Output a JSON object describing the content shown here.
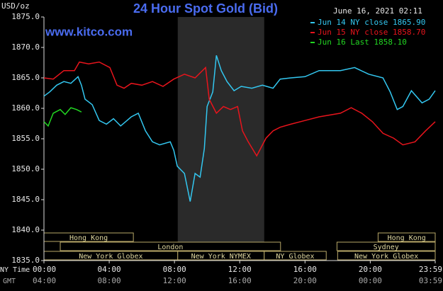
{
  "chart_data": {
    "type": "line",
    "title": "24 Hour Spot Gold (Bid)",
    "subtitle": "www.kitco.com",
    "timestamp": "June 16, 2021 02:11",
    "y_label": "USD/oz",
    "x_label": "NY Time",
    "x2_label": "GMT",
    "xlim": [
      0,
      23.98
    ],
    "xticks": [
      {
        "value": 0,
        "label": "00:00"
      },
      {
        "value": 4,
        "label": "04:00"
      },
      {
        "value": 8,
        "label": "08:00"
      },
      {
        "value": 12,
        "label": "12:00"
      },
      {
        "value": 16,
        "label": "16:00"
      },
      {
        "value": 20,
        "label": "20:00"
      },
      {
        "value": 23.98,
        "label": "23:59"
      }
    ],
    "x2_tick_labels": [
      "04:00",
      "08:00",
      "12:00",
      "16:00",
      "20:00",
      "00:00",
      "03:59"
    ],
    "ylim": [
      1835,
      1875
    ],
    "yticks": [
      {
        "value": 1835,
        "label": "1835.0"
      },
      {
        "value": 1840,
        "label": "1840.0"
      },
      {
        "value": 1845,
        "label": "1845.0"
      },
      {
        "value": 1850,
        "label": "1850.0"
      },
      {
        "value": 1855,
        "label": "1855.0"
      },
      {
        "value": 1860,
        "label": "1860.0"
      },
      {
        "value": 1865,
        "label": "1865.0"
      },
      {
        "value": 1870,
        "label": "1870.0"
      },
      {
        "value": 1875,
        "label": "1875.0"
      }
    ],
    "grid": false,
    "legend": "top-right",
    "shade_x": [
      8.2,
      13.5
    ],
    "sessions": [
      {
        "label": "Hong Kong",
        "row": 0,
        "start": 0,
        "end": 5.48
      },
      {
        "label": "Hong Kong",
        "row": 0,
        "start": 20.48,
        "end": 23.98
      },
      {
        "label": "London",
        "row": 1,
        "start": 1.0,
        "end": 14.5
      },
      {
        "label": "Sydney",
        "row": 1,
        "start": 17.96,
        "end": 23.98
      },
      {
        "label": "New York Globex",
        "row": 2,
        "start": 0,
        "end": 8.2
      },
      {
        "label": "New York NYMEX",
        "row": 2,
        "start": 8.2,
        "end": 13.5
      },
      {
        "label": "NY Globex",
        "row": 2,
        "start": 13.5,
        "end": 17.3
      },
      {
        "label": "New York Globex",
        "row": 2,
        "start": 18.0,
        "end": 23.98
      }
    ],
    "series": [
      {
        "name": "Jun 14 NY close 1865.90",
        "color": "#33c7f0",
        "x": [
          0,
          0.35,
          0.78,
          1.22,
          1.65,
          2.09,
          2.3,
          2.52,
          2.96,
          3.39,
          3.83,
          4.26,
          4.7,
          5.35,
          5.78,
          6.22,
          6.65,
          7.09,
          7.74,
          7.96,
          8.17,
          8.61,
          8.96,
          9.26,
          9.57,
          9.83,
          10.0,
          10.35,
          10.57,
          10.87,
          11.22,
          11.65,
          12.09,
          12.74,
          13.39,
          14.04,
          14.48,
          15.13,
          16.0,
          16.87,
          18.17,
          19.04,
          19.91,
          20.78,
          21.22,
          21.65,
          22.0,
          22.52,
          23.17,
          23.61,
          23.98
        ],
        "values": [
          1862.0,
          1862.7,
          1863.8,
          1864.4,
          1864.1,
          1865.2,
          1863.8,
          1861.5,
          1860.6,
          1858.0,
          1857.4,
          1858.3,
          1857.1,
          1858.6,
          1859.2,
          1856.3,
          1854.5,
          1854.0,
          1854.5,
          1853.1,
          1850.5,
          1849.3,
          1844.7,
          1849.3,
          1848.7,
          1853.4,
          1860.3,
          1862.7,
          1868.7,
          1866.2,
          1864.4,
          1862.9,
          1863.6,
          1863.3,
          1863.8,
          1863.3,
          1864.8,
          1865.0,
          1865.2,
          1866.2,
          1866.2,
          1866.7,
          1865.6,
          1865.0,
          1862.7,
          1859.8,
          1860.3,
          1862.9,
          1860.9,
          1861.5,
          1862.9
        ]
      },
      {
        "name": "Jun 15 NY close 1858.70",
        "color": "#e8141c",
        "x": [
          0,
          0.57,
          1.22,
          1.87,
          2.17,
          2.74,
          3.39,
          4.04,
          4.48,
          4.91,
          5.35,
          6.0,
          6.65,
          7.3,
          7.96,
          8.61,
          9.26,
          9.91,
          10.13,
          10.57,
          11.0,
          11.43,
          11.87,
          12.17,
          12.52,
          13.04,
          13.61,
          14.04,
          14.48,
          15.13,
          16.0,
          16.87,
          18.17,
          18.83,
          19.48,
          20.13,
          20.78,
          21.43,
          22.0,
          22.74,
          23.39,
          23.98
        ],
        "values": [
          1865.0,
          1864.8,
          1866.2,
          1866.2,
          1867.6,
          1867.3,
          1867.6,
          1866.7,
          1863.8,
          1863.3,
          1864.1,
          1863.8,
          1864.4,
          1863.6,
          1864.8,
          1865.6,
          1865.0,
          1866.7,
          1861.5,
          1859.2,
          1860.3,
          1859.8,
          1860.3,
          1856.3,
          1854.5,
          1852.2,
          1855.1,
          1856.3,
          1856.9,
          1857.4,
          1858.0,
          1858.6,
          1859.2,
          1860.1,
          1859.2,
          1857.8,
          1855.9,
          1855.1,
          1854.0,
          1854.5,
          1856.3,
          1857.8
        ]
      },
      {
        "name": "Jun 16 Last 1858.10",
        "color": "#22d622",
        "x": [
          0,
          0.26,
          0.57,
          1.0,
          1.3,
          1.65,
          2.0,
          2.3
        ],
        "values": [
          1857.8,
          1857.1,
          1859.2,
          1859.8,
          1859.0,
          1860.1,
          1859.8,
          1859.4
        ]
      }
    ]
  }
}
